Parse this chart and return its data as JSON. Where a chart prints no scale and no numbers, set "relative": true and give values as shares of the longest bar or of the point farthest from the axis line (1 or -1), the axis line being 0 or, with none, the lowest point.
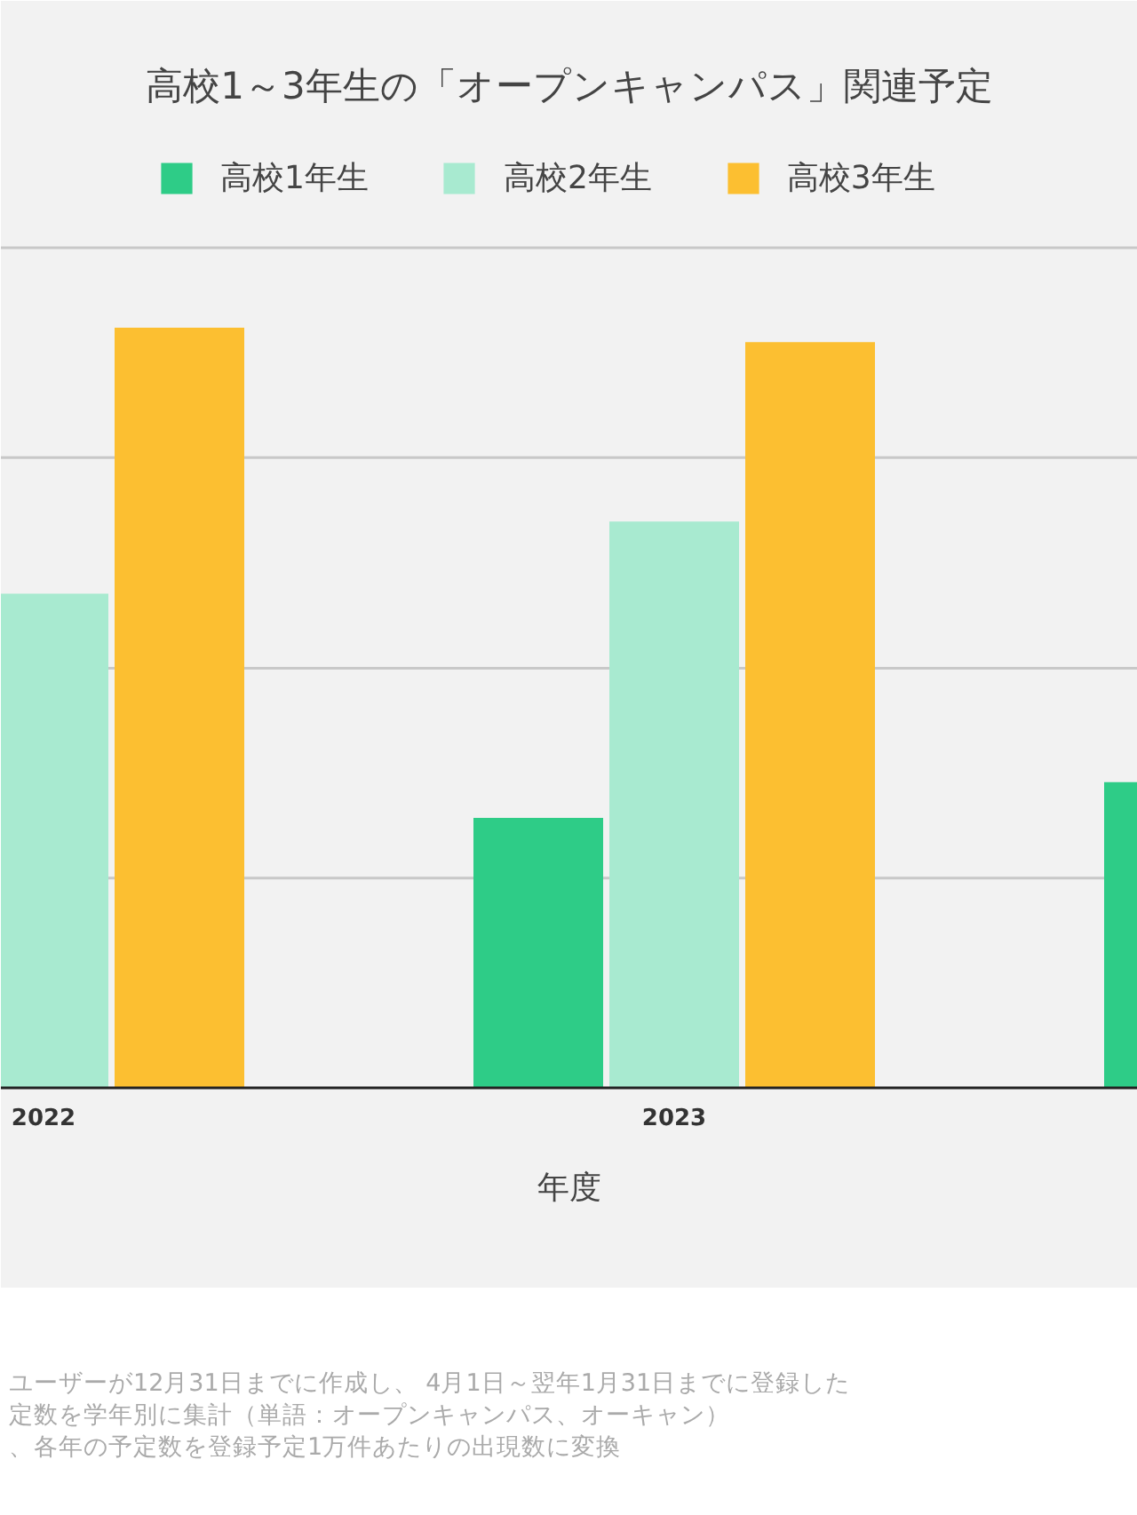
{
  "chart_data": {
    "type": "bar",
    "title": "高校1～3年生の「オープンキャンパス」関連予定",
    "xlabel": "年度",
    "categories": [
      "2022",
      "2023",
      null
    ],
    "series": [
      {
        "name": "高校1年生",
        "color": "#2ecc87",
        "values": [
          null,
          0.355,
          0.402
        ]
      },
      {
        "name": "高校2年生",
        "color": "#a8ead0",
        "values": [
          0.65,
          0.745,
          null
        ]
      },
      {
        "name": "高校3年生",
        "color": "#fcbf31",
        "values": [
          1,
          0.981,
          null
        ]
      }
    ],
    "relative": true,
    "legend": "top",
    "ref_lines": [
      {
        "axis": "y",
        "value": 0.276,
        "color": "#c8c8c8"
      },
      {
        "axis": "y",
        "value": 0.552,
        "color": "#c8c8c8"
      },
      {
        "axis": "y",
        "value": 0.829,
        "color": "#c8c8c8"
      },
      {
        "axis": "y",
        "value": 1.105,
        "color": "#c8c8c8"
      }
    ],
    "annotations": [
      "ユーザーが12月31日までに作成し、 4月1日～翌年1月31日までに登録した",
      "定数を学年別に集計（単語：オープンキャンパス、オーキャン）",
      "、各年の予定数を登録予定1万件あたりの出現数に変換"
    ]
  }
}
